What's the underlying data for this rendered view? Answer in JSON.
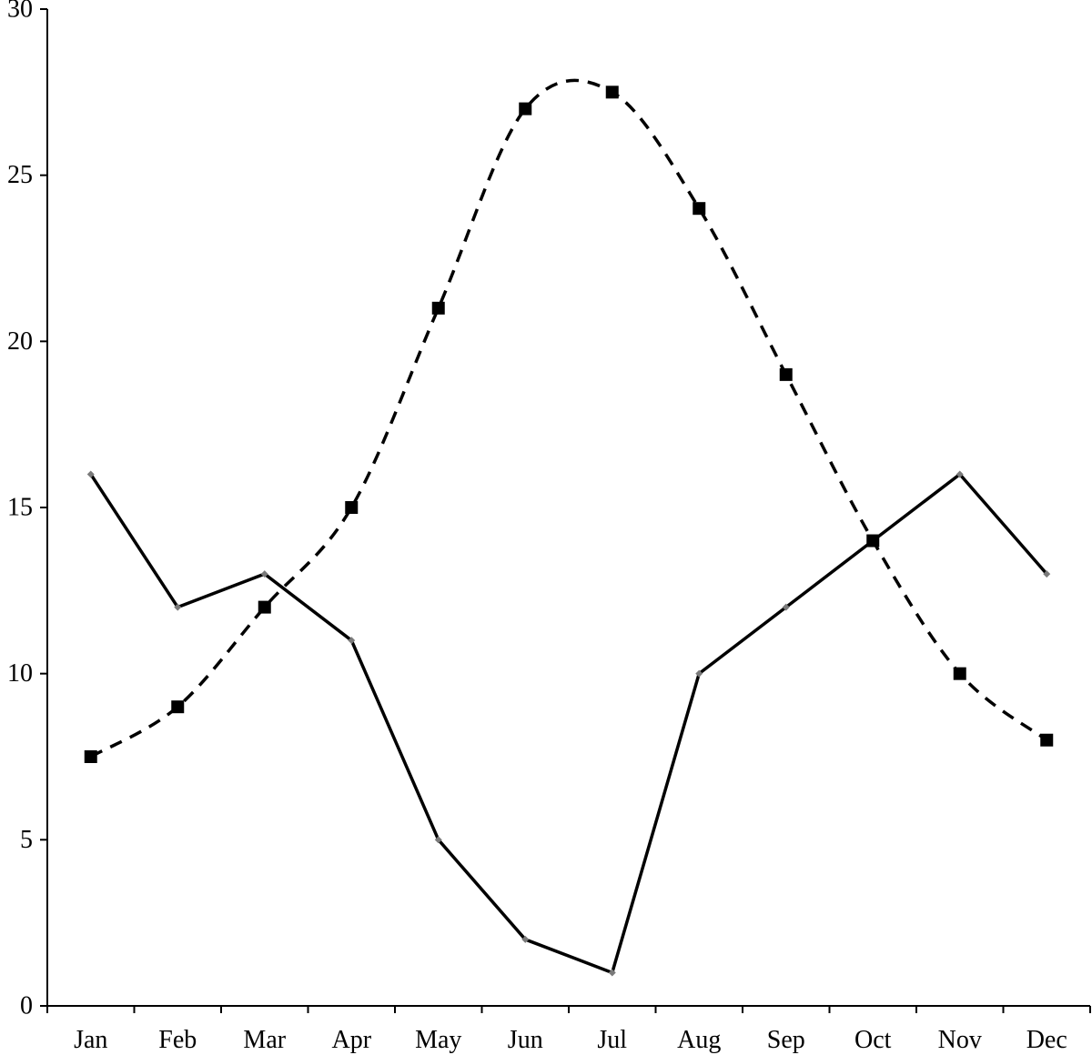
{
  "chart_data": {
    "type": "line",
    "categories": [
      "Jan",
      "Feb",
      "Mar",
      "Apr",
      "May",
      "Jun",
      "Jul",
      "Aug",
      "Sep",
      "Oct",
      "Nov",
      "Dec"
    ],
    "series": [
      {
        "values": [
          16,
          12,
          13,
          11,
          5,
          2,
          1,
          10,
          12,
          14,
          16,
          13
        ],
        "line_style": "solid",
        "marker": "small diamond",
        "color": "#000000",
        "marker_color": "#7a7a7a"
      },
      {
        "values": [
          7.5,
          9,
          12,
          15,
          21,
          27,
          27.5,
          24,
          19,
          14,
          10,
          8
        ],
        "line_style": "dashed",
        "smoothed": true,
        "marker": "square",
        "color": "#000000"
      }
    ],
    "ylim": [
      0,
      30
    ],
    "yticks": [
      0,
      5,
      10,
      15,
      20,
      25,
      30
    ],
    "xlabel": "",
    "ylabel": "",
    "title": "",
    "grid": false,
    "legend": false
  }
}
